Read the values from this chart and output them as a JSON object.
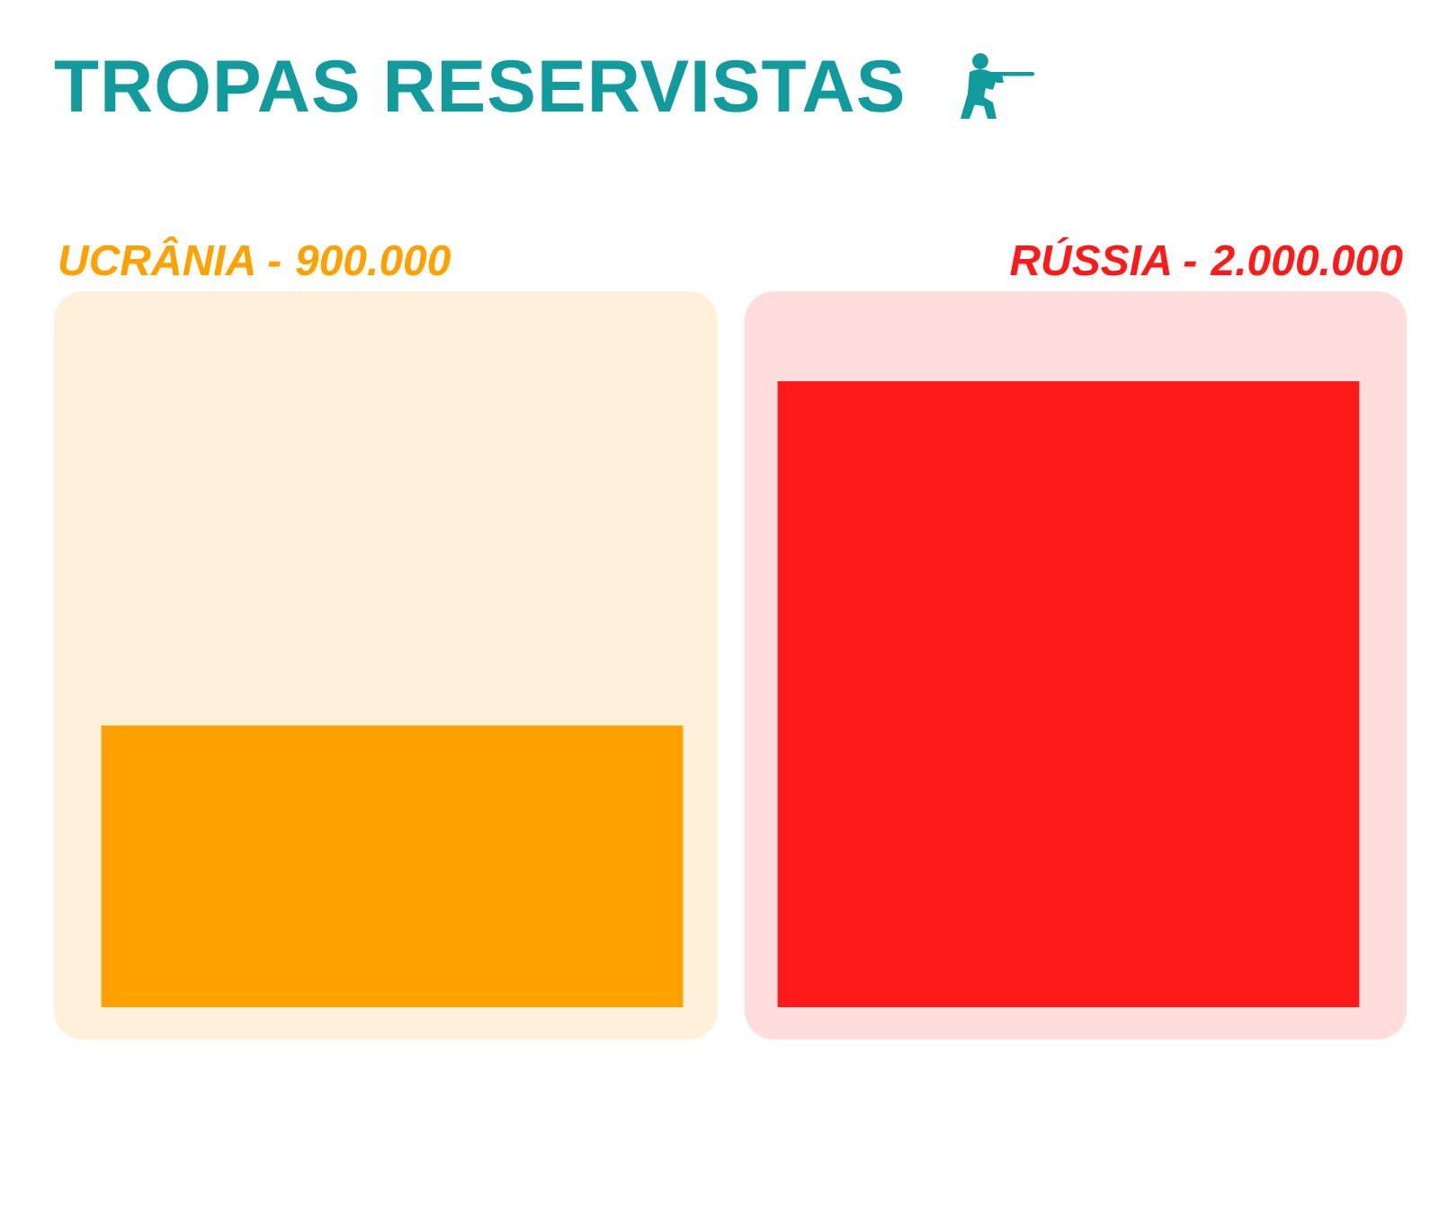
{
  "chart_data": {
    "type": "bar",
    "title": "TROPAS RESERVISTAS",
    "categories": [
      "UCRÂNIA -",
      "RÚSSIA -"
    ],
    "values": [
      900000,
      2000000
    ],
    "value_labels": [
      "900.000",
      "2.000.000"
    ],
    "colors": [
      "#ffa200",
      "#ff1a1a"
    ],
    "tick_labels": "x"
  }
}
